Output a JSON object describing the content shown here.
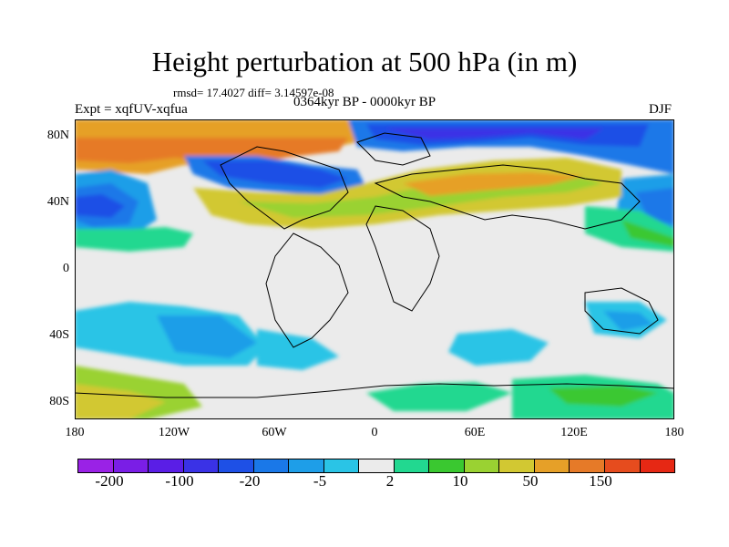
{
  "title": "Height perturbation at 500 hPa (in m)",
  "stats": "rmsd= 17.4027 diff= 3.14597e-08",
  "period": "0364kyr BP - 0000kyr BP",
  "experiment": "Expt = xqfUV-xqfua",
  "season": "DJF",
  "map": {
    "lat_ticks": [
      "80N",
      "40N",
      "0",
      "40S",
      "80S"
    ],
    "lon_ticks": [
      "180",
      "120W",
      "60W",
      "0",
      "60E",
      "120E",
      "180"
    ],
    "background_color": "#ebebeb"
  },
  "colorbar": {
    "colors": [
      "#9a22e6",
      "#7a1ee6",
      "#5a1ee6",
      "#3a32e6",
      "#1e50e6",
      "#1a78e8",
      "#1e9ee8",
      "#2ac4e6",
      "#ebebeb",
      "#22d890",
      "#3ac830",
      "#9ad232",
      "#d2c832",
      "#e6a028",
      "#e67a28",
      "#e64c1e",
      "#e62814"
    ],
    "labels": [
      "-200",
      "-100",
      "-20",
      "-5",
      "2",
      "10",
      "50",
      "150"
    ]
  }
}
